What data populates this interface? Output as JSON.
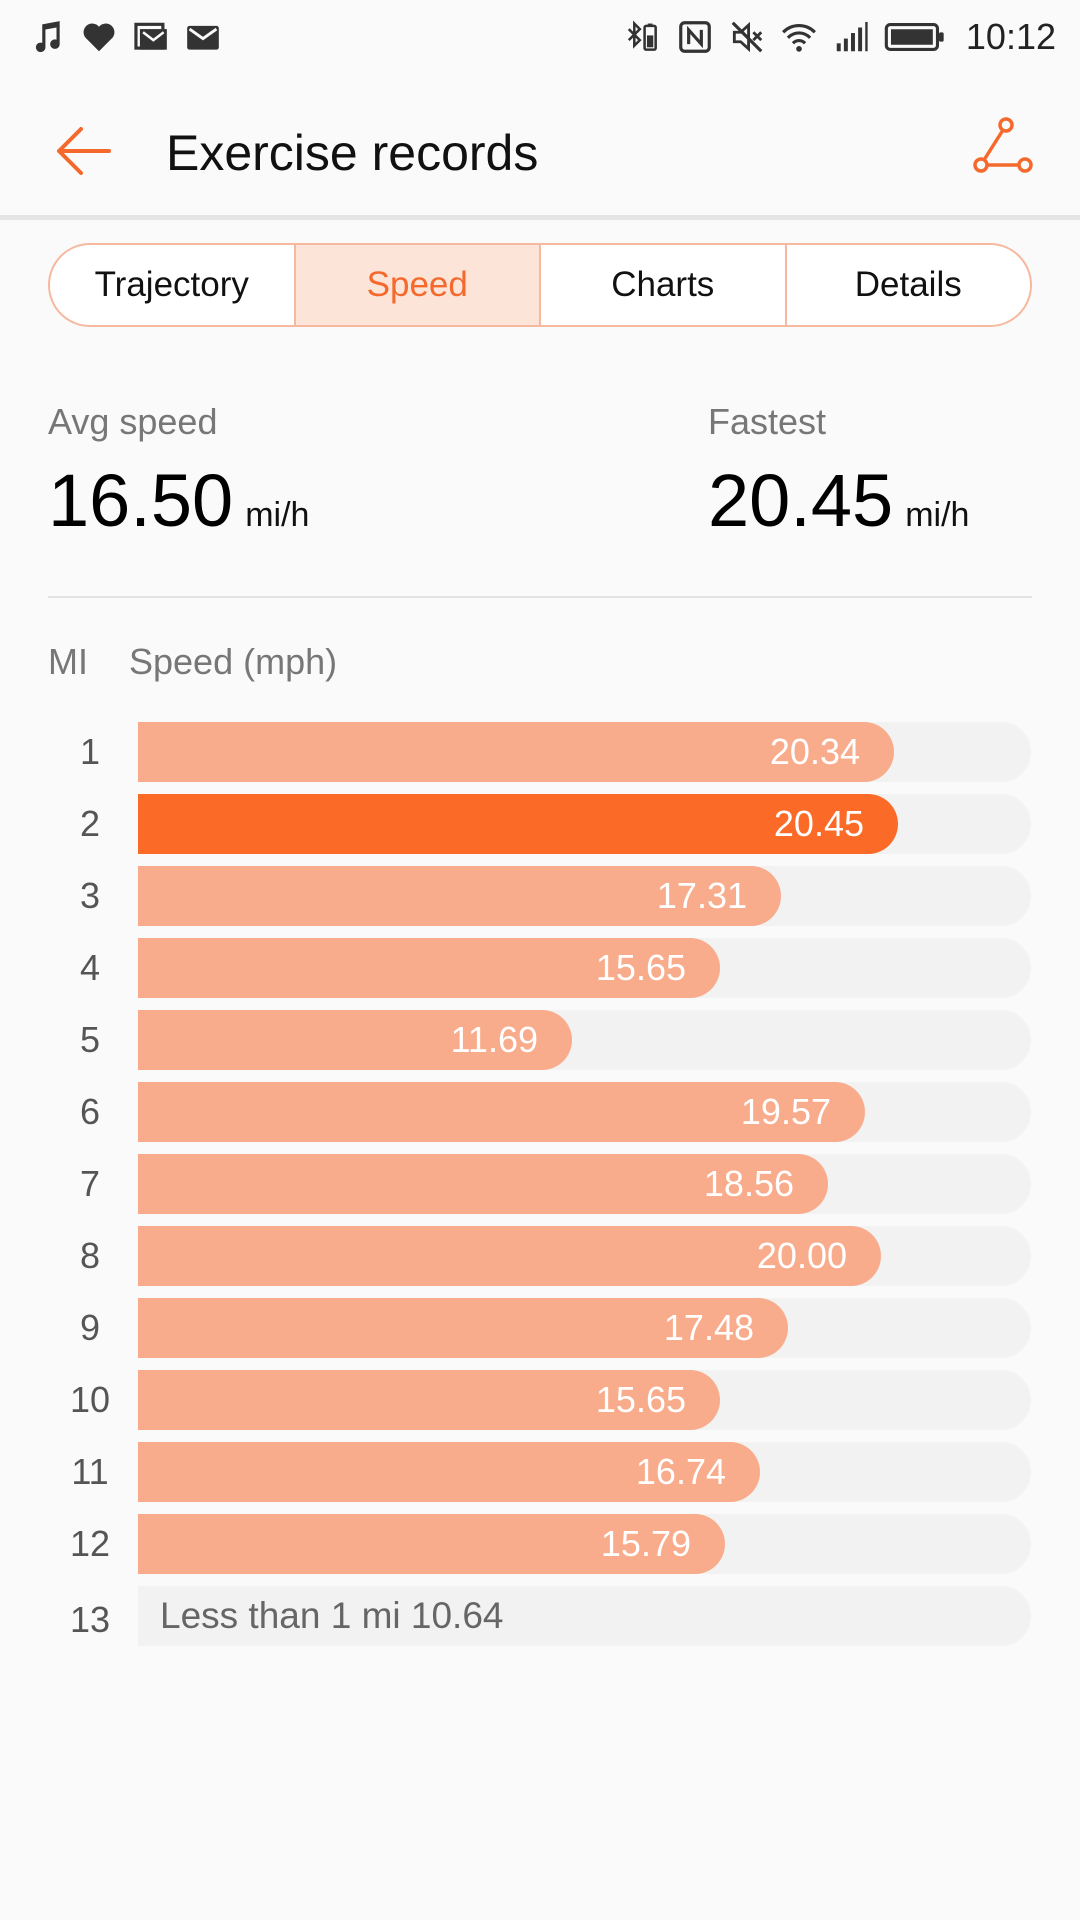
{
  "status_bar": {
    "time": "10:12",
    "left_icons": [
      "music-note-icon",
      "heart-icon",
      "gallery-mail-icon",
      "mail-icon"
    ],
    "right_icons": [
      "bluetooth-battery-icon",
      "nfc-icon",
      "mute-icon",
      "wifi-icon",
      "signal-icon",
      "battery-icon"
    ]
  },
  "header": {
    "title": "Exercise records",
    "back_icon": "arrow-left-icon",
    "share_icon": "share-icon"
  },
  "tabs": [
    {
      "label": "Trajectory",
      "active": false
    },
    {
      "label": "Speed",
      "active": true
    },
    {
      "label": "Charts",
      "active": false
    },
    {
      "label": "Details",
      "active": false
    }
  ],
  "stats": {
    "avg": {
      "label": "Avg speed",
      "value": "16.50",
      "unit": "mi/h"
    },
    "fastest": {
      "label": "Fastest",
      "value": "20.45",
      "unit": "mi/h"
    }
  },
  "splits": {
    "col_mi": "MI",
    "col_speed": "Speed (mph)",
    "rows": [
      {
        "mi": "1",
        "speed": 20.34,
        "label": "20.34"
      },
      {
        "mi": "2",
        "speed": 20.45,
        "label": "20.45",
        "fastest": true
      },
      {
        "mi": "3",
        "speed": 17.31,
        "label": "17.31"
      },
      {
        "mi": "4",
        "speed": 15.65,
        "label": "15.65"
      },
      {
        "mi": "5",
        "speed": 11.69,
        "label": "11.69"
      },
      {
        "mi": "6",
        "speed": 19.57,
        "label": "19.57"
      },
      {
        "mi": "7",
        "speed": 18.56,
        "label": "18.56"
      },
      {
        "mi": "8",
        "speed": 20.0,
        "label": "20.00"
      },
      {
        "mi": "9",
        "speed": 17.48,
        "label": "17.48"
      },
      {
        "mi": "10",
        "speed": 15.65,
        "label": "15.65"
      },
      {
        "mi": "11",
        "speed": 16.74,
        "label": "16.74"
      },
      {
        "mi": "12",
        "speed": 15.79,
        "label": "15.79"
      }
    ],
    "last_row": {
      "mi": "13",
      "text": "Less than 1 mi 10.64"
    }
  },
  "colors": {
    "accent": "#f5692c",
    "bar": "#f8ac8c",
    "bar_fastest": "#fb6a26",
    "track": "#f2f2f2"
  }
}
